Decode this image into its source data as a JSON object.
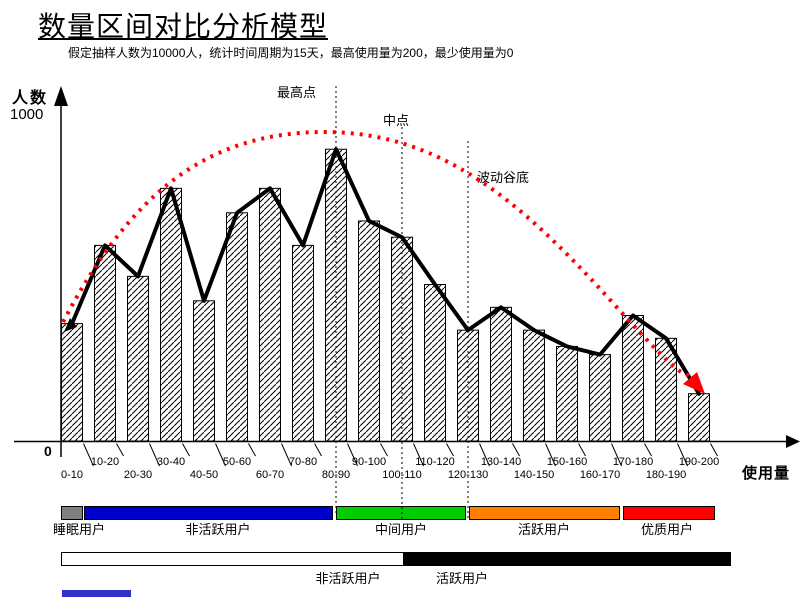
{
  "title": "数量区间对比分析模型",
  "subtitle": "假定抽样人数为10000人，统计时间周期为15天，最高使用量为200，最少使用量为0",
  "y_axis": {
    "label": "人数",
    "max_label": "1000",
    "origin": "0"
  },
  "x_axis": {
    "label": "使用量"
  },
  "annotations": [
    {
      "text": "最高点",
      "at_category": "80-90"
    },
    {
      "text": "中点",
      "at_category": "100-110"
    },
    {
      "text": "波动谷底",
      "at_category": "120-130"
    }
  ],
  "chart_data": {
    "type": "bar",
    "title": "数量区间对比分析模型",
    "xlabel": "使用量",
    "ylabel": "人数",
    "ylim": [
      0,
      1000
    ],
    "categories": [
      "0-10",
      "10-20",
      "20-30",
      "30-40",
      "40-50",
      "50-60",
      "60-70",
      "70-80",
      "80-90",
      "90-100",
      "100-110",
      "110-120",
      "120-130",
      "130-140",
      "140-150",
      "150-160",
      "160-170",
      "170-180",
      "180-190",
      "190-200"
    ],
    "values": [
      360,
      600,
      505,
      775,
      430,
      700,
      775,
      600,
      895,
      675,
      625,
      480,
      340,
      410,
      340,
      290,
      265,
      385,
      315,
      145
    ],
    "overlays": [
      {
        "name": "trend-polyline",
        "type": "line",
        "color": "#000000",
        "follows": "bar-tops"
      },
      {
        "name": "envelope-curve",
        "type": "dotted-arc",
        "color": "#FF0000",
        "ends_with": "arrow"
      }
    ],
    "grid": false,
    "legend_position": "bottom"
  },
  "legend_user_types": {
    "segments": [
      {
        "label": "睡眠用户",
        "color": "#808080"
      },
      {
        "label": "非活跃用户",
        "color": "#0000CC"
      },
      {
        "label": "中间用户",
        "color": "#00CC00"
      },
      {
        "label": "活跃用户",
        "color": "#FF8000"
      },
      {
        "label": "优质用户",
        "color": "#FF0000"
      }
    ]
  },
  "legend_activity": {
    "segments": [
      {
        "label": "非活跃用户",
        "color": "#FFFFFF"
      },
      {
        "label": "活跃用户",
        "color": "#000000"
      }
    ]
  },
  "colors": {
    "accent_red": "#FF0000",
    "line_black": "#000000",
    "footer_bar": "#3333CC"
  }
}
